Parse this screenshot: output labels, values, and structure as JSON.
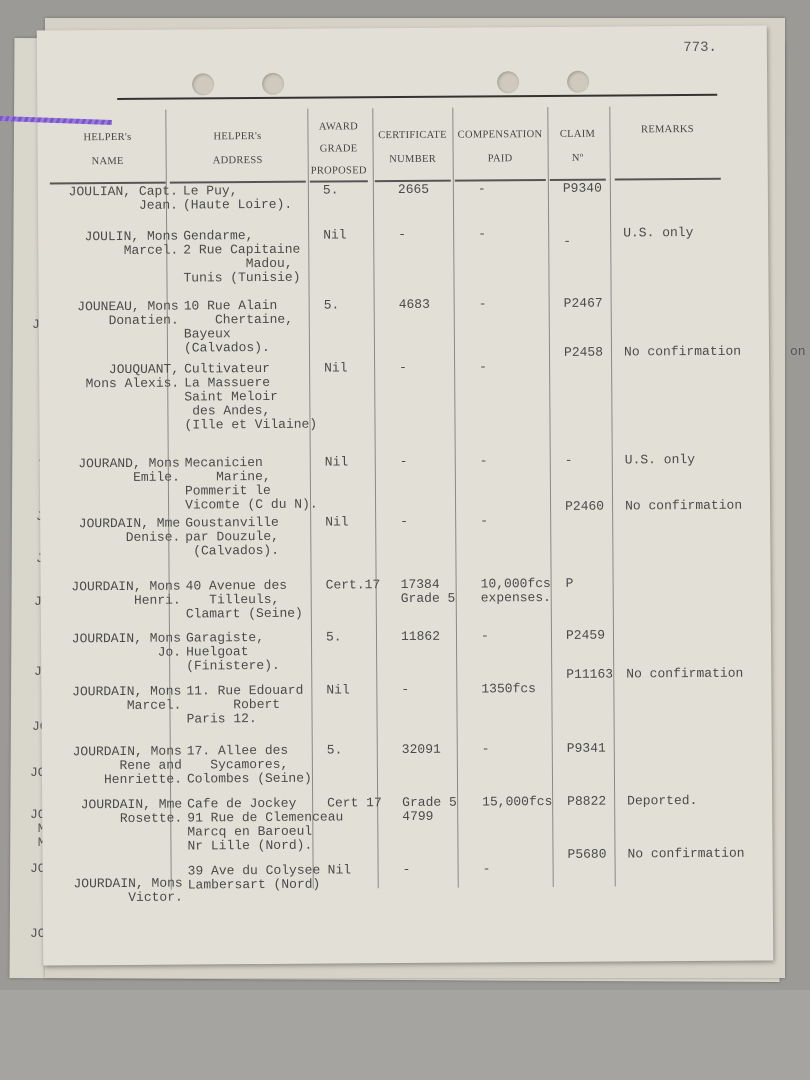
{
  "page_number": "773.",
  "headers": [
    {
      "key": "name",
      "label": "HELPER's\nNAME"
    },
    {
      "key": "address",
      "label": "HELPER's\nADDRESS"
    },
    {
      "key": "award",
      "label": "AWARD\nGRADE\nPROPOSED"
    },
    {
      "key": "certificate",
      "label": "CERTIFICATE\nNUMBER"
    },
    {
      "key": "compensation",
      "label": "COMPENSATION\nPAID"
    },
    {
      "key": "claim",
      "label": "CLAIM\nNº"
    },
    {
      "key": "remarks",
      "label": "REMARKS"
    }
  ],
  "rows": [
    {
      "name": "JOULIAN, Capt.\nJean.",
      "address": "Le Puy,\n(Haute Loire).",
      "award": "5.",
      "certificate": "2665",
      "compensation": "-",
      "claim": "P9340",
      "remarks": ""
    },
    {
      "name": "JOULIN, Mons\nMarcel.",
      "address": "Gendarme,\n2 Rue Capitaine\n        Madou,\nTunis (Tunisie)",
      "award": "Nil",
      "certificate": "-",
      "compensation": "-",
      "claim": "-",
      "remarks": "U.S. only"
    },
    {
      "name": "JOUNEAU, Mons\nDonatien.",
      "address": "10 Rue Alain\n    Chertaine,\nBayeux\n(Calvados).",
      "award": "5.",
      "certificate": "4683",
      "compensation": "-",
      "claim": "P2467",
      "remarks": ""
    },
    {
      "name": "JOUQUANT,\nMons Alexis.",
      "address": "Cultivateur\nLa Massuere\nSaint Meloir\n des Andes,\n(Ille et Vilaine)",
      "award": "Nil",
      "certificate": "-",
      "compensation": "-",
      "claim": "P2458",
      "remarks": "No confirmation"
    },
    {
      "name": "JOURAND, Mons\nEmile.",
      "address": "Mecanicien\n    Marine,\nPommerit le\nVicomte (C du N).",
      "award": "Nil",
      "certificate": "-",
      "compensation": "-",
      "claim": "-",
      "remarks": "U.S. only"
    },
    {
      "name": "JOURDAIN, Mme\nDenise.",
      "address": "Goustanville\npar Douzule,\n (Calvados).",
      "award": "Nil",
      "certificate": "-",
      "compensation": "-",
      "claim": "P2460",
      "remarks": "No confirmation"
    },
    {
      "name": "JOURDAIN, Mons\nHenri.",
      "address": "40 Avenue des\n   Tilleuls,\nClamart (Seine)",
      "award": "Cert.17",
      "certificate": "17384\nGrade 5",
      "compensation": "10,000fcs\nexpenses.",
      "claim": "P",
      "remarks": ""
    },
    {
      "name": "JOURDAIN, Mons\nJo.",
      "address": "Garagiste,\nHuelgoat\n(Finistere).",
      "award": "5.",
      "certificate": "11862",
      "compensation": "-",
      "claim": "P2459",
      "remarks": ""
    },
    {
      "name": "JOURDAIN, Mons\nMarcel.",
      "address": "11. Rue Edouard\n      Robert\nParis 12.",
      "award": "Nil",
      "certificate": "-",
      "compensation": "1350fcs",
      "claim": "P11163",
      "remarks": "No confirmation"
    },
    {
      "name": "JOURDAIN, Mons\nRene and\nHenriette.",
      "address": "17. Allee des\n   Sycamores,\nColombes (Seine)",
      "award": "5.",
      "certificate": "32091",
      "compensation": "-",
      "claim": "P9341",
      "remarks": ""
    },
    {
      "name": "JOURDAIN, Mme\nRosette.",
      "address": "Cafe de Jockey\n91 Rue de Clemenceau\nMarcq en Baroeul\nNr Lille (Nord).",
      "award": "Cert 17",
      "certificate": "Grade 5\n4799",
      "compensation": "15,000fcs",
      "claim": "P8822",
      "remarks": "Deported."
    },
    {
      "name": "JOURDAIN, Mons\nVictor.",
      "address": "39 Ave du Colysee\nLambersart (Nord)",
      "award": "Nil",
      "certificate": "-",
      "compensation": "-",
      "claim": "P5680",
      "remarks": "No confirmation"
    }
  ],
  "underlying_fragments": [
    "J",
    "JO\n C",
    "JOU\n (",
    "JOU",
    "JOUI",
    "JOUR",
    "JOURN\n  Em",
    "JOURT",
    "JOUSS\n Mons\n Mmem",
    "JOUSSE\n  Luc\n    J",
    "JOUSSE",
    "n",
    "on",
    "-",
    "U.S. only"
  ]
}
